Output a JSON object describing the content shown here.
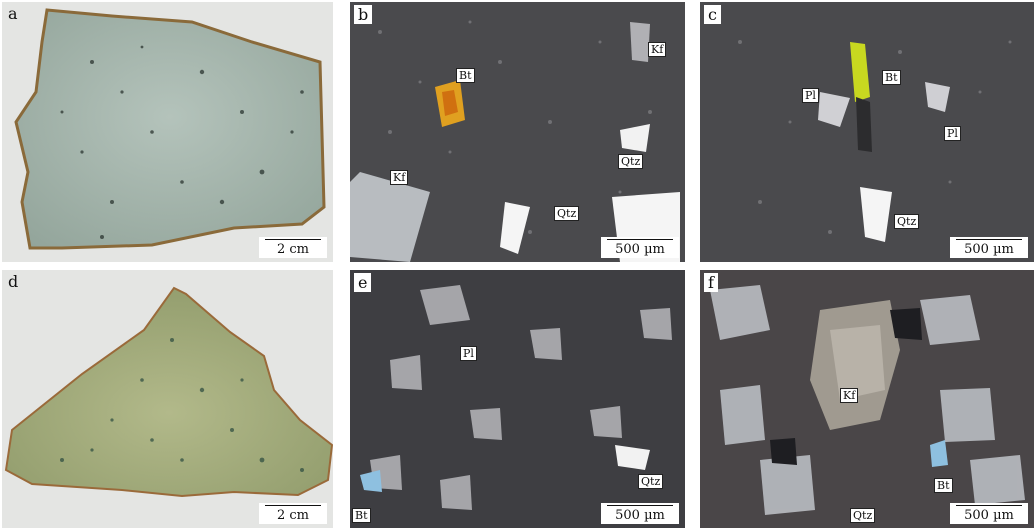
{
  "panels": [
    {
      "id": "a",
      "label": "a",
      "scale": "2 cm"
    },
    {
      "id": "b",
      "label": "b",
      "scale": "500 µm",
      "minerals": [
        "Bt",
        "Kf",
        "Kf",
        "Qtz",
        "Qtz"
      ]
    },
    {
      "id": "c",
      "label": "c",
      "scale": "500 µm",
      "minerals": [
        "Bt",
        "Pl",
        "Pl",
        "Qtz"
      ]
    },
    {
      "id": "d",
      "label": "d",
      "scale": "2 cm"
    },
    {
      "id": "e",
      "label": "e",
      "scale": "500 µm",
      "minerals": [
        "Pl",
        "Qtz",
        "Bt"
      ]
    },
    {
      "id": "f",
      "label": "f",
      "scale": "500 µm",
      "minerals": [
        "Kf",
        "Bt",
        "Qtz"
      ]
    }
  ],
  "colors": {
    "hand_specimen_bg": "#e4e5e3",
    "rock_a": "#a9b9b0",
    "rock_d": "#a6ae7e",
    "matrix": "#4a4a4d"
  }
}
